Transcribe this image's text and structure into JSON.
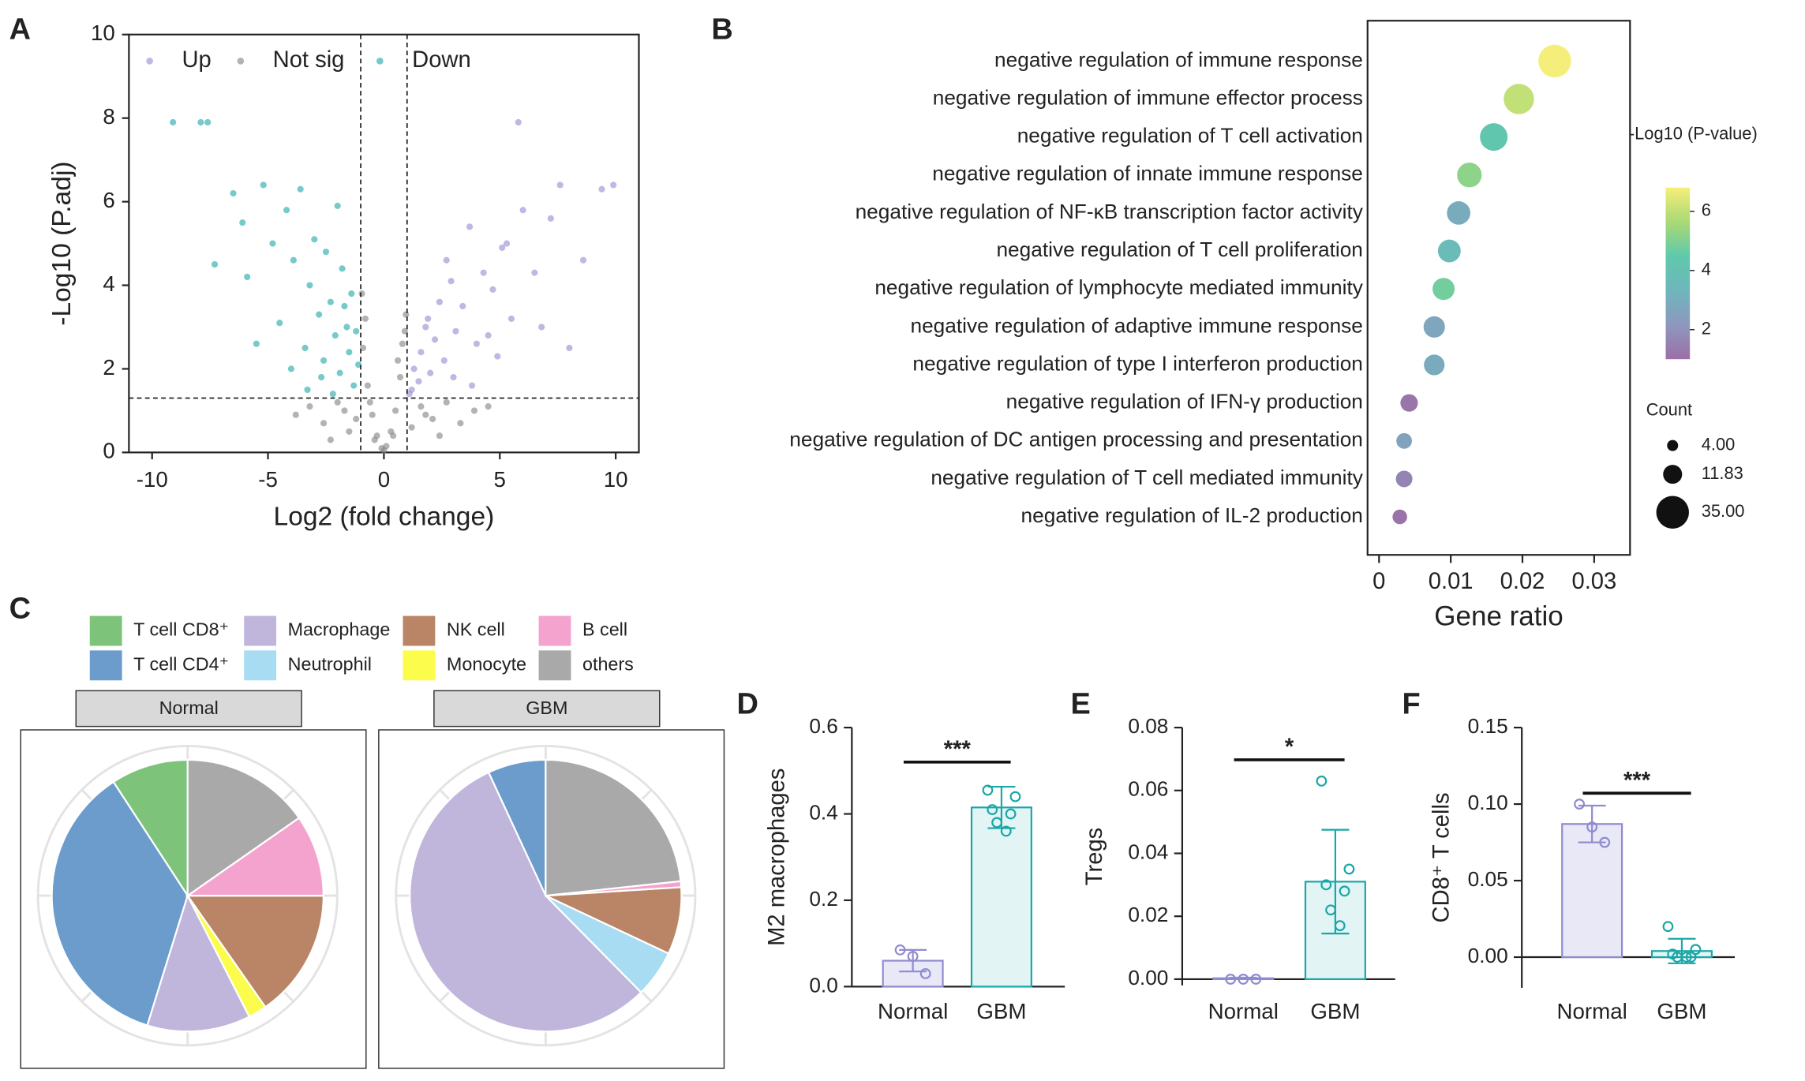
{
  "chart_data": [
    {
      "type": "scatter",
      "panel": "A",
      "xlabel": "Log2 (fold change)",
      "ylabel": "-Log10 (P.adj)",
      "xlim": [
        -11,
        11
      ],
      "ylim": [
        0,
        10
      ],
      "xticks": [
        -10,
        -5,
        0,
        5,
        10
      ],
      "yticks": [
        0,
        2,
        4,
        6,
        8,
        10
      ],
      "cutoffs": {
        "x": [
          -1,
          1
        ],
        "y": 1.3
      },
      "series": [
        {
          "name": "Up",
          "color": "#8f8bd0",
          "x": [
            5.8,
            9.9,
            9.4,
            8.6,
            7.6,
            7.2,
            6.5,
            6.0,
            5.5,
            5.1,
            4.7,
            4.3,
            4.0,
            3.7,
            3.4,
            3.1,
            2.9,
            2.6,
            2.4,
            2.2,
            2.0,
            1.8,
            1.6,
            1.5,
            1.3,
            1.2,
            1.1,
            3.8,
            4.9,
            6.8,
            5.3,
            2.7,
            1.9,
            3.0,
            4.5,
            8.0
          ],
          "values": [
            7.9,
            6.4,
            6.3,
            4.6,
            6.4,
            5.6,
            4.3,
            5.8,
            3.2,
            4.9,
            3.9,
            4.3,
            2.6,
            5.4,
            3.5,
            2.9,
            4.1,
            2.2,
            3.6,
            2.7,
            1.9,
            3.0,
            2.4,
            1.7,
            2.0,
            1.5,
            1.4,
            1.6,
            2.3,
            3.0,
            5.0,
            4.6,
            3.2,
            1.8,
            2.8,
            2.5
          ]
        },
        {
          "name": "Not sig",
          "color": "#808080",
          "x": [
            -3.8,
            -3.2,
            -2.6,
            -2.0,
            -1.5,
            -1.2,
            -0.9,
            -0.7,
            -0.5,
            -0.3,
            -0.1,
            0,
            0.1,
            0.3,
            0.5,
            0.7,
            0.9,
            1.2,
            1.6,
            2.1,
            2.7,
            3.3,
            3.9,
            -0.8,
            -0.6,
            -0.4,
            0.4,
            0.6,
            0.8,
            -0.95,
            0.95,
            -2.3,
            2.4,
            -1.7,
            1.8,
            4.5
          ],
          "values": [
            0.9,
            1.1,
            0.7,
            1.2,
            0.5,
            0.8,
            2.5,
            1.6,
            0.9,
            0.4,
            0.1,
            0.05,
            0.15,
            0.5,
            1.0,
            1.8,
            2.9,
            0.6,
            1.1,
            0.8,
            1.2,
            0.7,
            1.0,
            3.2,
            1.2,
            0.3,
            0.4,
            2.2,
            2.6,
            3.8,
            3.3,
            0.3,
            0.4,
            1.0,
            0.9,
            1.1
          ]
        },
        {
          "name": "Down",
          "color": "#1aa7a7",
          "x": [
            -9.1,
            -7.9,
            -7.6,
            -6.5,
            -6.1,
            -5.9,
            -5.2,
            -4.8,
            -4.5,
            -4.2,
            -3.9,
            -3.6,
            -3.4,
            -3.2,
            -3.0,
            -2.8,
            -2.6,
            -2.5,
            -2.3,
            -2.1,
            -2.0,
            -1.9,
            -1.8,
            -1.6,
            -1.5,
            -1.4,
            -1.3,
            -1.2,
            -1.1,
            -3.3,
            -2.7,
            -2.2,
            -1.7,
            -4.0,
            -5.5,
            -7.3
          ],
          "values": [
            7.9,
            7.9,
            7.9,
            6.2,
            5.5,
            4.2,
            6.4,
            5.0,
            3.1,
            5.8,
            4.6,
            6.3,
            2.5,
            4.0,
            5.1,
            3.3,
            2.2,
            4.8,
            3.6,
            2.8,
            5.9,
            1.9,
            4.4,
            3.0,
            2.4,
            3.8,
            1.6,
            2.9,
            2.1,
            1.5,
            1.8,
            1.4,
            3.5,
            2.0,
            2.6,
            4.5
          ]
        }
      ]
    },
    {
      "type": "bubble",
      "panel": "B",
      "xlabel": "Gene ratio",
      "xlim": [
        -0.0016,
        0.035
      ],
      "xticks": [
        0,
        0.01,
        0.02,
        0.03
      ],
      "categories": [
        "negative regulation of immune response",
        "negative regulation of immune effector process",
        "negative regulation of T cell activation",
        "negative regulation of innate immune response",
        "negative regulation of NF-κB transcription factor activity",
        "negative regulation of T cell proliferation",
        "negative regulation of lymphocyte mediated immunity",
        "negative regulation of adaptive immune response",
        "negative regulation of type I interferon production",
        "negative regulation of IFN-γ production",
        "negative regulation of DC antigen processing and presentation",
        "negative regulation of T cell mediated immunity",
        "negative regulation of IL-2 production"
      ],
      "values": [
        0.0245,
        0.0195,
        0.016,
        0.0126,
        0.0111,
        0.0098,
        0.009,
        0.0077,
        0.0077,
        0.0042,
        0.0035,
        0.0035,
        0.0029
      ],
      "color_values": [
        6.8,
        6.0,
        4.3,
        5.2,
        2.9,
        3.6,
        4.8,
        2.7,
        2.9,
        1.2,
        2.6,
        1.6,
        1.1
      ],
      "sizes": [
        35,
        30,
        25,
        20,
        18,
        17,
        16,
        15,
        14,
        10,
        8,
        9,
        7
      ],
      "colorbar": {
        "title": "-Log10 (P-value)",
        "lim": [
          1,
          6.8
        ],
        "ticks": [
          2,
          4,
          6
        ],
        "colors": [
          "#9b6fa6",
          "#8e98bf",
          "#6fb6bc",
          "#5fc9ac",
          "#a9d975",
          "#f6ee7a"
        ]
      },
      "size_legend": {
        "title": "Count",
        "ticks": [
          {
            "value": 4,
            "label": "4.00"
          },
          {
            "value": 11.83,
            "label": "11.83"
          },
          {
            "value": 35,
            "label": "35.00"
          }
        ]
      }
    },
    {
      "type": "pie",
      "panel": "C",
      "categories": [
        "T cell CD8⁺",
        "T cell CD4⁺",
        "Macrophage",
        "Neutrophil",
        "Monocyte",
        "NK cell",
        "B cell",
        "others"
      ],
      "colors": [
        "#7dc47a",
        "#6b9ccc",
        "#c0b6dc",
        "#a8dcf2",
        "#fcfc4c",
        "#b98566",
        "#f4a3cf",
        "#a9a9a9"
      ],
      "series": [
        {
          "name": "Normal",
          "values": [
            9.2,
            36,
            12.3,
            0,
            2.2,
            15.3,
            9.7,
            15.3
          ]
        },
        {
          "name": "GBM",
          "values": [
            0,
            6.9,
            55.5,
            5.6,
            0,
            8,
            0.7,
            23.3
          ]
        }
      ]
    },
    {
      "type": "bar",
      "panel": "D",
      "ylabel": "M2 macrophages",
      "categories": [
        "Normal",
        "GBM"
      ],
      "colors": [
        "#8f8bd0",
        "#1aa7a7"
      ],
      "fills": [
        "#e9e8f6",
        "#e2f4f4"
      ],
      "ylim": [
        0,
        0.6
      ],
      "yticks": [
        {
          "value": 0,
          "label": "0.0"
        },
        0.2,
        0.4,
        0.6
      ],
      "values": [
        0.06,
        0.415
      ],
      "errors": [
        0.025,
        0.048
      ],
      "points": [
        [
          0.085,
          0.07,
          0.03
        ],
        [
          0.455,
          0.44,
          0.41,
          0.4,
          0.38,
          0.36
        ]
      ],
      "significance": "***"
    },
    {
      "type": "bar",
      "panel": "E",
      "ylabel": "Tregs",
      "categories": [
        "Normal",
        "GBM"
      ],
      "colors": [
        "#8f8bd0",
        "#1aa7a7"
      ],
      "fills": [
        "#e9e8f6",
        "#e2f4f4"
      ],
      "ylim": [
        -0.002,
        0.08
      ],
      "yticks": [
        {
          "value": 0,
          "label": "0.00"
        },
        0.02,
        0.04,
        0.06,
        0.08
      ],
      "values": [
        0.0003,
        0.031
      ],
      "errors": [
        0.0002,
        0.0165
      ],
      "points": [
        [
          0,
          0,
          0
        ],
        [
          0.063,
          0.035,
          0.03,
          0.028,
          0.022,
          0.017
        ]
      ],
      "significance": "*"
    },
    {
      "type": "bar",
      "panel": "F",
      "ylabel": "CD8⁺ T cells",
      "categories": [
        "Normal",
        "GBM"
      ],
      "colors": [
        "#8f8bd0",
        "#1aa7a7"
      ],
      "fills": [
        "#e9e8f6",
        "#e2f4f4"
      ],
      "ylim": [
        -0.02,
        0.15
      ],
      "yticks": [
        {
          "value": 0,
          "label": "0.00"
        },
        0.05,
        {
          "value": 0.1,
          "label": "0.10"
        },
        0.15
      ],
      "values": [
        0.087,
        0.004
      ],
      "errors": [
        0.012,
        0.008
      ],
      "points": [
        [
          0.1,
          0.085,
          0.075
        ],
        [
          0.02,
          0.005,
          0.002,
          0,
          0,
          0
        ]
      ],
      "significance": "***"
    }
  ]
}
